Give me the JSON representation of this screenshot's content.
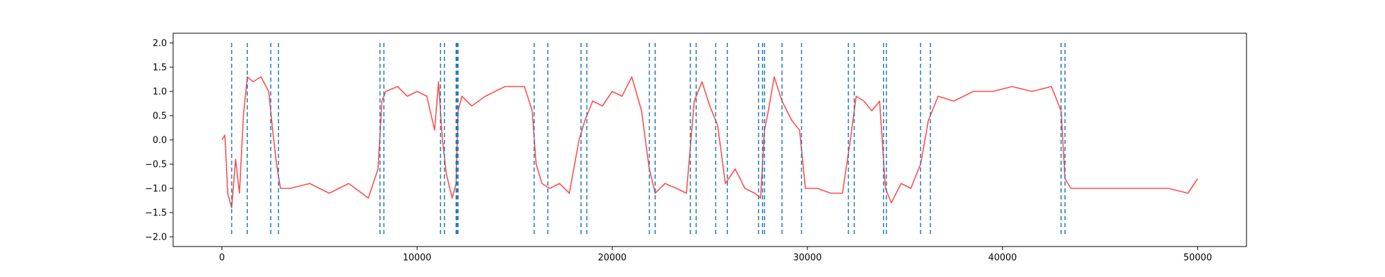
{
  "chart_data": {
    "type": "line",
    "title": "",
    "xlabel": "",
    "ylabel": "",
    "xlim": [
      -2500,
      52500
    ],
    "ylim": [
      -2.2,
      2.2
    ],
    "grid": false,
    "xticks": [
      0,
      10000,
      20000,
      30000,
      40000,
      50000
    ],
    "xtick_labels": [
      "0",
      "10000",
      "20000",
      "30000",
      "40000",
      "50000"
    ],
    "yticks": [
      -2.0,
      -1.5,
      -1.0,
      -0.5,
      0.0,
      0.5,
      1.0,
      1.5,
      2.0
    ],
    "ytick_labels": [
      "−2.0",
      "−1.5",
      "−1.0",
      "−0.5",
      "0.0",
      "0.5",
      "1.0",
      "1.5",
      "2.0"
    ],
    "series": [
      {
        "kind": "signal",
        "color": "#ff4d4d",
        "x": [
          0,
          150,
          300,
          500,
          700,
          900,
          1100,
          1300,
          1600,
          2000,
          2400,
          2600,
          2800,
          3000,
          3500,
          4500,
          5500,
          6500,
          7500,
          8000,
          8200,
          8400,
          9000,
          9500,
          10000,
          10500,
          10900,
          11100,
          11300,
          11500,
          11800,
          12000,
          12100,
          12300,
          12800,
          13500,
          14500,
          15500,
          15900,
          16100,
          16400,
          16800,
          17300,
          17800,
          18300,
          18600,
          19000,
          19500,
          20000,
          20500,
          21000,
          21500,
          21900,
          22200,
          22700,
          23300,
          23800,
          24200,
          24600,
          25000,
          25400,
          25800,
          26300,
          26800,
          27300,
          27600,
          27800,
          28000,
          28300,
          28700,
          29200,
          29600,
          29900,
          30500,
          31200,
          31800,
          32200,
          32500,
          32900,
          33300,
          33700,
          34000,
          34300,
          34800,
          35300,
          35800,
          36200,
          36700,
          37500,
          38500,
          39500,
          40500,
          41500,
          42500,
          43000,
          43200,
          43500,
          44500,
          45500,
          46500,
          47500,
          48500,
          49500,
          50000
        ],
        "y": [
          0.0,
          0.1,
          -1.1,
          -1.4,
          -0.4,
          -1.1,
          0.5,
          1.3,
          1.2,
          1.3,
          1.0,
          0.2,
          -0.5,
          -1.0,
          -1.0,
          -0.9,
          -1.1,
          -0.9,
          -1.2,
          -0.6,
          0.8,
          1.0,
          1.1,
          0.9,
          1.0,
          0.9,
          0.2,
          1.2,
          0.0,
          -0.7,
          -1.2,
          -0.9,
          0.6,
          0.9,
          0.7,
          0.9,
          1.1,
          1.1,
          0.6,
          -0.5,
          -0.9,
          -1.0,
          -0.9,
          -1.1,
          0.0,
          0.4,
          0.8,
          0.7,
          1.0,
          0.9,
          1.3,
          0.6,
          -0.6,
          -1.1,
          -0.9,
          -1.0,
          -1.1,
          0.8,
          1.2,
          0.7,
          0.3,
          -0.9,
          -0.6,
          -1.0,
          -1.1,
          -1.2,
          0.2,
          0.6,
          1.3,
          0.8,
          0.4,
          0.2,
          -1.0,
          -1.0,
          -1.1,
          -1.1,
          0.0,
          0.9,
          0.8,
          0.6,
          0.8,
          -1.0,
          -1.3,
          -0.9,
          -1.0,
          -0.5,
          0.4,
          0.9,
          0.8,
          1.0,
          1.0,
          1.1,
          1.0,
          1.1,
          0.6,
          -0.8,
          -1.0,
          -1.0,
          -1.0,
          -1.0,
          -1.0,
          -1.0,
          -1.1,
          -0.8
        ]
      }
    ],
    "vlines": {
      "color": "#1f77b4",
      "style": "dashed",
      "ymin": -2.0,
      "ymax": 2.0,
      "x": [
        500,
        1300,
        2500,
        2900,
        8100,
        8300,
        11200,
        11400,
        12000,
        12050,
        12100,
        16000,
        16700,
        18400,
        18700,
        21900,
        22200,
        24000,
        24300,
        25300,
        25900,
        27500,
        27700,
        27800,
        28700,
        29700,
        32100,
        32400,
        33900,
        34050,
        35800,
        36300,
        43000,
        43200
      ]
    }
  }
}
